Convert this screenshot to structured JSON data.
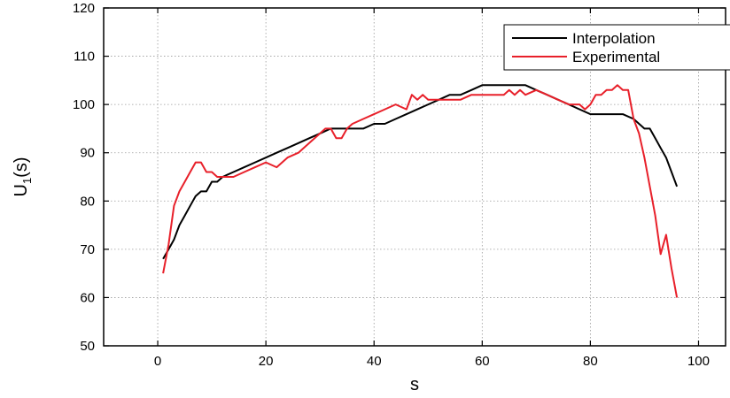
{
  "chart_data": {
    "type": "line",
    "xlabel": "s",
    "ylabel_main": "U",
    "ylabel_sub": "1",
    "ylabel_tail": "(s)",
    "xlim": [
      -10,
      105
    ],
    "ylim": [
      50,
      120
    ],
    "xticks": [
      0,
      20,
      40,
      60,
      80,
      100
    ],
    "yticks": [
      50,
      60,
      70,
      80,
      90,
      100,
      110,
      120
    ],
    "grid": "dotted horizontal and vertical at ticks",
    "legend_position": "top-right",
    "series": [
      {
        "name": "Interpolation",
        "color": "#000000",
        "x": [
          1,
          2,
          3,
          4,
          5,
          6,
          7,
          8,
          9,
          10,
          11,
          12,
          14,
          16,
          18,
          20,
          22,
          24,
          26,
          28,
          30,
          32,
          34,
          36,
          38,
          40,
          42,
          44,
          46,
          48,
          50,
          52,
          54,
          56,
          58,
          60,
          62,
          64,
          66,
          68,
          70,
          72,
          74,
          76,
          78,
          80,
          82,
          84,
          86,
          88,
          90,
          91,
          92,
          93,
          94,
          95,
          96
        ],
        "y": [
          68,
          70,
          72,
          75,
          77,
          79,
          81,
          82,
          82,
          84,
          84,
          85,
          86,
          87,
          88,
          89,
          90,
          91,
          92,
          93,
          94,
          95,
          95,
          95,
          95,
          96,
          96,
          97,
          98,
          99,
          100,
          101,
          102,
          102,
          103,
          104,
          104,
          104,
          104,
          104,
          103,
          102,
          101,
          100,
          99,
          98,
          98,
          98,
          98,
          97,
          95,
          95,
          93,
          91,
          89,
          86,
          83
        ]
      },
      {
        "name": "Experimental",
        "color": "#e8202a",
        "x": [
          1,
          2,
          3,
          4,
          5,
          6,
          7,
          8,
          9,
          10,
          11,
          12,
          14,
          16,
          18,
          20,
          22,
          24,
          26,
          28,
          30,
          31,
          32,
          33,
          34,
          35,
          36,
          38,
          40,
          42,
          44,
          46,
          47,
          48,
          49,
          50,
          52,
          54,
          56,
          58,
          60,
          62,
          64,
          65,
          66,
          67,
          68,
          70,
          72,
          74,
          76,
          78,
          79,
          80,
          81,
          82,
          83,
          84,
          85,
          86,
          87,
          88,
          89,
          90,
          91,
          92,
          93,
          94,
          95,
          96
        ],
        "y": [
          65,
          71,
          79,
          82,
          84,
          86,
          88,
          88,
          86,
          86,
          85,
          85,
          85,
          86,
          87,
          88,
          87,
          89,
          90,
          92,
          94,
          95,
          95,
          93,
          93,
          95,
          96,
          97,
          98,
          99,
          100,
          99,
          102,
          101,
          102,
          101,
          101,
          101,
          101,
          102,
          102,
          102,
          102,
          103,
          102,
          103,
          102,
          103,
          102,
          101,
          100,
          100,
          99,
          100,
          102,
          102,
          103,
          103,
          104,
          103,
          103,
          97,
          94,
          89,
          83,
          77,
          69,
          73,
          66,
          60
        ]
      }
    ]
  }
}
